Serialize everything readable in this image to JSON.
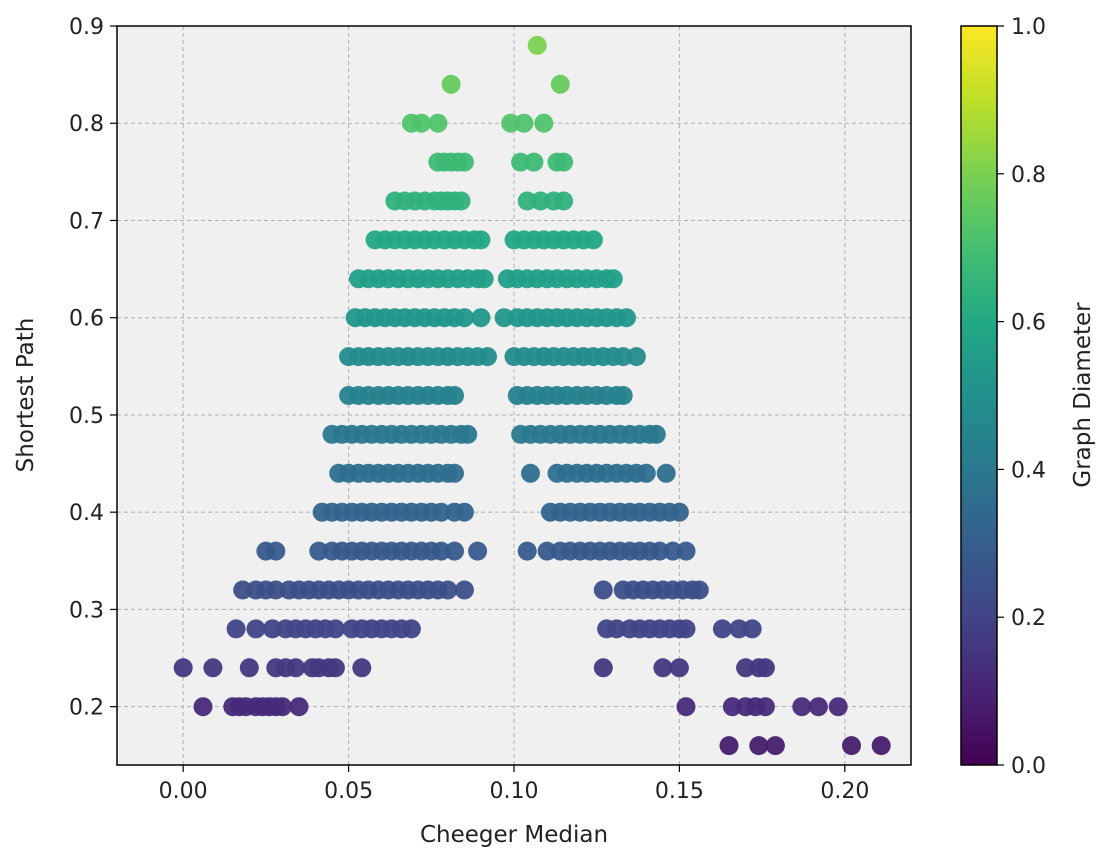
{
  "chart_data": {
    "type": "scatter",
    "title": "",
    "xlabel": "Cheeger Median",
    "ylabel": "Shortest Path",
    "colorbar_label": "Graph Diameter",
    "xlim": [
      -0.02,
      0.22
    ],
    "ylim": [
      0.14,
      0.9
    ],
    "x_ticks": [
      0.0,
      0.05,
      0.1,
      0.15,
      0.2
    ],
    "x_tick_labels": [
      "0.00",
      "0.05",
      "0.10",
      "0.15",
      "0.20"
    ],
    "y_ticks": [
      0.2,
      0.3,
      0.4,
      0.5,
      0.6,
      0.7,
      0.8,
      0.9
    ],
    "y_tick_labels": [
      "0.2",
      "0.3",
      "0.4",
      "0.5",
      "0.6",
      "0.7",
      "0.8",
      "0.9"
    ],
    "colorbar_ticks": [
      0.0,
      0.2,
      0.4,
      0.6,
      0.8,
      1.0
    ],
    "colorbar_tick_labels": [
      "0.0",
      "0.2",
      "0.4",
      "0.6",
      "0.8",
      "1.0"
    ],
    "colormap": "viridis",
    "grid": true,
    "plot_background": "#f0f0f0",
    "rows": [
      {
        "y": 0.88,
        "xs": [
          0.107
        ]
      },
      {
        "y": 0.84,
        "xs": [
          0.081,
          0.114
        ]
      },
      {
        "y": 0.8,
        "xs": [
          0.069,
          0.072,
          0.077,
          0.099,
          0.103,
          0.109
        ]
      },
      {
        "y": 0.76,
        "xs": [
          0.077,
          0.079,
          0.081,
          0.083,
          0.085,
          0.102,
          0.106,
          0.113,
          0.115
        ]
      },
      {
        "y": 0.72,
        "xs": [
          0.064,
          0.067,
          0.07,
          0.073,
          0.076,
          0.078,
          0.08,
          0.082,
          0.084,
          0.104,
          0.108,
          0.112,
          0.115
        ]
      },
      {
        "y": 0.68,
        "xs": [
          0.058,
          0.061,
          0.064,
          0.067,
          0.07,
          0.073,
          0.076,
          0.079,
          0.082,
          0.085,
          0.088,
          0.09,
          0.1,
          0.103,
          0.106,
          0.109,
          0.112,
          0.115,
          0.118,
          0.121,
          0.124
        ]
      },
      {
        "y": 0.64,
        "xs": [
          0.053,
          0.056,
          0.059,
          0.062,
          0.065,
          0.068,
          0.071,
          0.074,
          0.077,
          0.08,
          0.083,
          0.086,
          0.089,
          0.091,
          0.098,
          0.101,
          0.104,
          0.107,
          0.11,
          0.113,
          0.116,
          0.119,
          0.122,
          0.125,
          0.128,
          0.13
        ]
      },
      {
        "y": 0.6,
        "xs": [
          0.052,
          0.055,
          0.058,
          0.061,
          0.064,
          0.067,
          0.07,
          0.073,
          0.076,
          0.079,
          0.082,
          0.085,
          0.09,
          0.097,
          0.101,
          0.104,
          0.107,
          0.11,
          0.113,
          0.116,
          0.119,
          0.122,
          0.125,
          0.128,
          0.131,
          0.134
        ]
      },
      {
        "y": 0.56,
        "xs": [
          0.05,
          0.053,
          0.056,
          0.059,
          0.062,
          0.065,
          0.068,
          0.071,
          0.074,
          0.077,
          0.08,
          0.083,
          0.086,
          0.089,
          0.092,
          0.1,
          0.103,
          0.106,
          0.109,
          0.112,
          0.115,
          0.118,
          0.121,
          0.124,
          0.127,
          0.13,
          0.133,
          0.137
        ]
      },
      {
        "y": 0.52,
        "xs": [
          0.05,
          0.053,
          0.056,
          0.059,
          0.062,
          0.065,
          0.068,
          0.071,
          0.074,
          0.077,
          0.08,
          0.082,
          0.101,
          0.104,
          0.107,
          0.11,
          0.113,
          0.116,
          0.119,
          0.122,
          0.125,
          0.128,
          0.131,
          0.133
        ]
      },
      {
        "y": 0.48,
        "xs": [
          0.045,
          0.048,
          0.051,
          0.054,
          0.057,
          0.06,
          0.063,
          0.066,
          0.069,
          0.072,
          0.075,
          0.078,
          0.081,
          0.084,
          0.086,
          0.102,
          0.105,
          0.108,
          0.111,
          0.114,
          0.117,
          0.12,
          0.123,
          0.126,
          0.129,
          0.132,
          0.135,
          0.138,
          0.141,
          0.143
        ]
      },
      {
        "y": 0.44,
        "xs": [
          0.047,
          0.05,
          0.053,
          0.056,
          0.059,
          0.062,
          0.065,
          0.068,
          0.071,
          0.074,
          0.077,
          0.08,
          0.082,
          0.105,
          0.113,
          0.116,
          0.119,
          0.122,
          0.125,
          0.128,
          0.131,
          0.134,
          0.137,
          0.14,
          0.146
        ]
      },
      {
        "y": 0.4,
        "xs": [
          0.042,
          0.045,
          0.048,
          0.051,
          0.054,
          0.057,
          0.06,
          0.063,
          0.066,
          0.069,
          0.072,
          0.075,
          0.078,
          0.082,
          0.085,
          0.111,
          0.114,
          0.117,
          0.12,
          0.123,
          0.126,
          0.129,
          0.132,
          0.135,
          0.138,
          0.141,
          0.144,
          0.147,
          0.15
        ]
      },
      {
        "y": 0.36,
        "xs": [
          0.025,
          0.028,
          0.041,
          0.045,
          0.048,
          0.051,
          0.054,
          0.057,
          0.06,
          0.063,
          0.066,
          0.069,
          0.072,
          0.075,
          0.078,
          0.082,
          0.089,
          0.104,
          0.11,
          0.114,
          0.117,
          0.12,
          0.123,
          0.126,
          0.129,
          0.132,
          0.135,
          0.138,
          0.141,
          0.144,
          0.148,
          0.152
        ]
      },
      {
        "y": 0.32,
        "xs": [
          0.018,
          0.022,
          0.025,
          0.028,
          0.032,
          0.035,
          0.038,
          0.041,
          0.044,
          0.047,
          0.05,
          0.053,
          0.056,
          0.059,
          0.062,
          0.065,
          0.068,
          0.071,
          0.074,
          0.077,
          0.08,
          0.085,
          0.127,
          0.133,
          0.136,
          0.139,
          0.142,
          0.145,
          0.148,
          0.151,
          0.154,
          0.156
        ]
      },
      {
        "y": 0.28,
        "xs": [
          0.016,
          0.022,
          0.027,
          0.031,
          0.034,
          0.037,
          0.04,
          0.043,
          0.046,
          0.051,
          0.054,
          0.057,
          0.06,
          0.063,
          0.066,
          0.069,
          0.128,
          0.131,
          0.135,
          0.138,
          0.141,
          0.144,
          0.147,
          0.15,
          0.152,
          0.163,
          0.168,
          0.172
        ]
      },
      {
        "y": 0.24,
        "xs": [
          0.0,
          0.009,
          0.02,
          0.028,
          0.031,
          0.034,
          0.039,
          0.041,
          0.044,
          0.046,
          0.054,
          0.127,
          0.145,
          0.15,
          0.17,
          0.174,
          0.176
        ]
      },
      {
        "y": 0.2,
        "xs": [
          0.006,
          0.015,
          0.017,
          0.019,
          0.022,
          0.024,
          0.026,
          0.028,
          0.03,
          0.035,
          0.152,
          0.166,
          0.17,
          0.173,
          0.176,
          0.187,
          0.192,
          0.198
        ]
      },
      {
        "y": 0.16,
        "xs": [
          0.165,
          0.174,
          0.179,
          0.202,
          0.211
        ]
      }
    ]
  }
}
